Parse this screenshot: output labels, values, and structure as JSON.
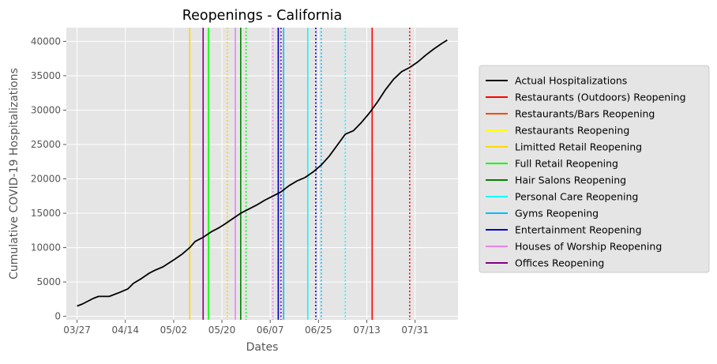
{
  "chart_data": {
    "type": "line",
    "title": "Reopenings - California",
    "xlabel": "Dates",
    "ylabel": "Cumulative COVID-19 Hospitalizations",
    "x_ticks": [
      "03/27",
      "04/14",
      "05/02",
      "05/20",
      "06/07",
      "06/25",
      "07/13",
      "07/31"
    ],
    "y_ticks": [
      "0",
      "5000",
      "10000",
      "15000",
      "20000",
      "25000",
      "30000",
      "35000",
      "40000"
    ],
    "xlim": [
      "2020-03-23",
      "2020-08-16"
    ],
    "ylim": [
      -500,
      42000
    ],
    "grid": true,
    "legend_position": "right, outside plot",
    "series": [
      {
        "name": "Actual Hospitalizations",
        "color": "#000000",
        "x": [
          "2020-03-27",
          "2020-03-29",
          "2020-03-31",
          "2020-04-02",
          "2020-04-04",
          "2020-04-08",
          "2020-04-12",
          "2020-04-15",
          "2020-04-17",
          "2020-04-20",
          "2020-04-23",
          "2020-04-25",
          "2020-04-28",
          "2020-05-02",
          "2020-05-05",
          "2020-05-08",
          "2020-05-10",
          "2020-05-13",
          "2020-05-16",
          "2020-05-19",
          "2020-05-21",
          "2020-05-24",
          "2020-05-27",
          "2020-05-30",
          "2020-06-02",
          "2020-06-05",
          "2020-06-08",
          "2020-06-11",
          "2020-06-14",
          "2020-06-17",
          "2020-06-20",
          "2020-06-23",
          "2020-06-26",
          "2020-06-29",
          "2020-07-02",
          "2020-07-05",
          "2020-07-08",
          "2020-07-11",
          "2020-07-14",
          "2020-07-17",
          "2020-07-20",
          "2020-07-23",
          "2020-07-26",
          "2020-07-29",
          "2020-08-01",
          "2020-08-04",
          "2020-08-07",
          "2020-08-10",
          "2020-08-12"
        ],
        "y": [
          1500,
          1800,
          2200,
          2600,
          2900,
          2900,
          3500,
          4000,
          4800,
          5500,
          6300,
          6700,
          7200,
          8200,
          9000,
          10000,
          10900,
          11500,
          12300,
          12900,
          13400,
          14200,
          15000,
          15600,
          16200,
          16900,
          17500,
          18100,
          19000,
          19700,
          20200,
          21000,
          22000,
          23300,
          24900,
          26500,
          27000,
          28200,
          29600,
          31200,
          33000,
          34500,
          35600,
          36200,
          37000,
          38000,
          38900,
          39700,
          40200
        ]
      }
    ],
    "events": [
      {
        "name": "Restaurants (Outdoors) Reopening",
        "color": "#ff0000",
        "dates": [
          {
            "date": "2020-07-15",
            "style": "solid"
          },
          {
            "date": "2020-07-29",
            "style": "dotted"
          }
        ]
      },
      {
        "name": "Restaurants/Bars Reopening",
        "color": "#ff4500",
        "dates": []
      },
      {
        "name": "Restaurants Reopening",
        "color": "#ffff00",
        "dates": []
      },
      {
        "name": "Limitted Retail Reopening",
        "color": "#ffd700",
        "dates": [
          {
            "date": "2020-05-08",
            "style": "solid"
          },
          {
            "date": "2020-05-22",
            "style": "dotted"
          }
        ]
      },
      {
        "name": "Full Retail Reopening",
        "color": "#00ff00",
        "dates": [
          {
            "date": "2020-05-15",
            "style": "solid"
          },
          {
            "date": "2020-05-29",
            "style": "dotted"
          }
        ]
      },
      {
        "name": "Hair Salons Reopening",
        "color": "#008000",
        "dates": [
          {
            "date": "2020-05-27",
            "style": "solid"
          },
          {
            "date": "2020-06-10",
            "style": "dotted"
          }
        ]
      },
      {
        "name": "Personal Care Reopening",
        "color": "#00ffff",
        "dates": [
          {
            "date": "2020-06-21",
            "style": "solid"
          },
          {
            "date": "2020-07-05",
            "style": "dotted"
          }
        ]
      },
      {
        "name": "Gyms Reopening",
        "color": "#00bfff",
        "dates": [
          {
            "date": "2020-06-12",
            "style": "solid"
          },
          {
            "date": "2020-06-26",
            "style": "dotted"
          }
        ]
      },
      {
        "name": "Entertainment Reopening",
        "color": "#0000cd",
        "dates": [
          {
            "date": "2020-06-10",
            "style": "solid"
          },
          {
            "date": "2020-06-24",
            "style": "dotted"
          }
        ]
      },
      {
        "name": "Houses of Worship Reopening",
        "color": "#ee82ee",
        "dates": [
          {
            "date": "2020-05-25",
            "style": "solid"
          },
          {
            "date": "2020-06-08",
            "style": "dotted"
          }
        ]
      },
      {
        "name": "Offices Reopening",
        "color": "#800080",
        "dates": [
          {
            "date": "2020-05-13",
            "style": "solid"
          },
          {
            "date": "2020-06-11",
            "style": "dotted"
          }
        ]
      }
    ]
  }
}
